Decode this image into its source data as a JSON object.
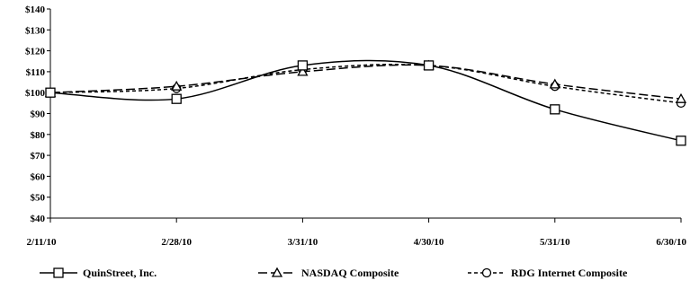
{
  "chart_data": {
    "type": "line",
    "x": [
      "2/11/10",
      "2/28/10",
      "3/31/10",
      "4/30/10",
      "5/31/10",
      "6/30/10"
    ],
    "ylim": [
      40,
      140
    ],
    "yticks": [
      40,
      50,
      60,
      70,
      80,
      90,
      100,
      110,
      120,
      130,
      140
    ],
    "ytick_labels": [
      "$40",
      "$50",
      "$60",
      "$70",
      "$80",
      "$90",
      "$100",
      "$110",
      "$120",
      "$130",
      "$140"
    ],
    "grid": false,
    "legend_position": "bottom",
    "series": [
      {
        "name": "QuinStreet, Inc.",
        "values": [
          100,
          97,
          113,
          113,
          92,
          77
        ],
        "marker": "square",
        "line_style": "solid",
        "color": "#000000"
      },
      {
        "name": "NASDAQ Composite",
        "values": [
          100,
          103,
          110,
          113,
          104,
          97
        ],
        "marker": "triangle",
        "line_style": "long-dash",
        "color": "#000000"
      },
      {
        "name": "RDG Internet Composite",
        "values": [
          100,
          102,
          111,
          113,
          103,
          95
        ],
        "marker": "circle",
        "line_style": "short-dash",
        "color": "#000000"
      }
    ]
  }
}
